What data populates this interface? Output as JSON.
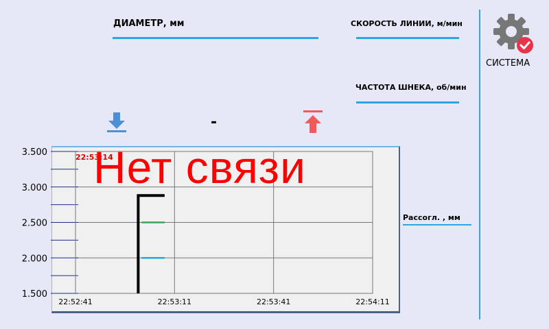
{
  "header": {
    "diameter_label": "ДИАМЕТР, мм",
    "line_speed_label": "СКОРОСТЬ ЛИНИИ, м/мин",
    "screw_freq_label": "ЧАСТОТА ШНЕКА, об/мин"
  },
  "system": {
    "label": "СИСТЕМА",
    "icon": "gear-check-icon"
  },
  "controls": {
    "down_icon": "arrow-down-to-line-icon",
    "up_icon": "arrow-up-from-line-icon",
    "value_text": "-"
  },
  "status": {
    "no_connection": "Нет связи"
  },
  "mismatch_label": "Рассогл. , мм",
  "colors": {
    "accent": "#29a8e0",
    "down_arrow": "#4a90d9",
    "up_arrow": "#f05a5a",
    "alarm": "#ff0000"
  },
  "chart_data": {
    "type": "line",
    "timestamp_label": "22:53:14",
    "x_ticks": [
      "22:52:41",
      "22:53:11",
      "22:53:41",
      "22:54:11"
    ],
    "y_ticks": [
      "3.500",
      "3.000",
      "2.500",
      "2.000",
      "1.500"
    ],
    "ylim": [
      1.5,
      3.5
    ],
    "series": [
      {
        "color": "#000000",
        "points": [
          [
            "22:53:00",
            1.5
          ],
          [
            "22:53:00",
            2.88
          ],
          [
            "22:53:08",
            2.88
          ]
        ]
      },
      {
        "color": "#3aa657",
        "points": [
          [
            "22:53:01",
            2.5
          ],
          [
            "22:53:08",
            2.5
          ]
        ]
      },
      {
        "color": "#1fa7e0",
        "points": [
          [
            "22:53:01",
            2.0
          ],
          [
            "22:53:08",
            2.0
          ]
        ]
      }
    ],
    "grid": true
  }
}
